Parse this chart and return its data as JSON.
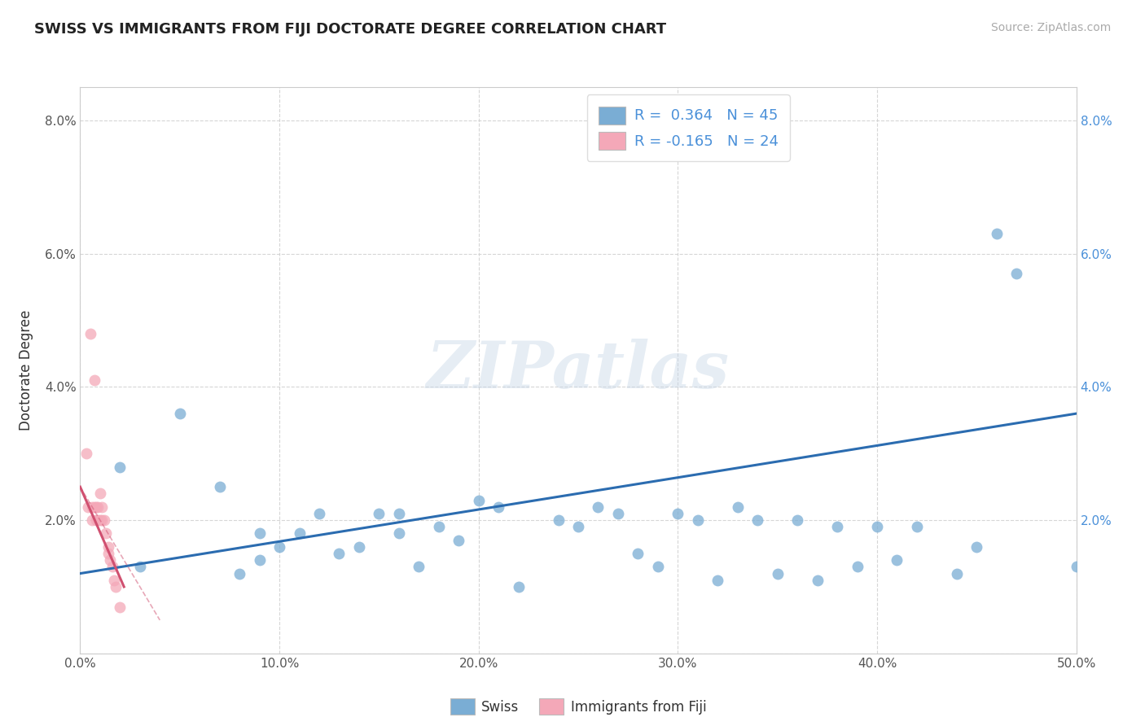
{
  "title": "SWISS VS IMMIGRANTS FROM FIJI DOCTORATE DEGREE CORRELATION CHART",
  "source": "Source: ZipAtlas.com",
  "ylabel": "Doctorate Degree",
  "xlim": [
    0.0,
    0.5
  ],
  "ylim": [
    0.0,
    0.085
  ],
  "xticks": [
    0.0,
    0.1,
    0.2,
    0.3,
    0.4,
    0.5
  ],
  "yticks": [
    0.0,
    0.02,
    0.04,
    0.06,
    0.08
  ],
  "ytick_labels_left": [
    "",
    "2.0%",
    "4.0%",
    "6.0%",
    "8.0%"
  ],
  "ytick_labels_right": [
    "",
    "2.0%",
    "4.0%",
    "6.0%",
    "8.0%"
  ],
  "xtick_labels": [
    "0.0%",
    "10.0%",
    "20.0%",
    "30.0%",
    "40.0%",
    "50.0%"
  ],
  "swiss_color": "#7aadd4",
  "fiji_color": "#f4a8b8",
  "swiss_line_color": "#2b6cb0",
  "fiji_line_color": "#d05070",
  "swiss_R": 0.364,
  "swiss_N": 45,
  "fiji_R": -0.165,
  "fiji_N": 24,
  "watermark": "ZIPatlas",
  "swiss_x": [
    0.02,
    0.03,
    0.05,
    0.07,
    0.08,
    0.09,
    0.09,
    0.1,
    0.11,
    0.12,
    0.13,
    0.14,
    0.15,
    0.16,
    0.16,
    0.17,
    0.18,
    0.19,
    0.2,
    0.21,
    0.22,
    0.24,
    0.25,
    0.26,
    0.27,
    0.28,
    0.29,
    0.3,
    0.31,
    0.32,
    0.33,
    0.34,
    0.35,
    0.36,
    0.37,
    0.38,
    0.39,
    0.4,
    0.41,
    0.42,
    0.44,
    0.45,
    0.46,
    0.47,
    0.5
  ],
  "swiss_y": [
    0.028,
    0.013,
    0.036,
    0.025,
    0.012,
    0.018,
    0.014,
    0.016,
    0.018,
    0.021,
    0.015,
    0.016,
    0.021,
    0.021,
    0.018,
    0.013,
    0.019,
    0.017,
    0.023,
    0.022,
    0.01,
    0.02,
    0.019,
    0.022,
    0.021,
    0.015,
    0.013,
    0.021,
    0.02,
    0.011,
    0.022,
    0.02,
    0.012,
    0.02,
    0.011,
    0.019,
    0.013,
    0.019,
    0.014,
    0.019,
    0.012,
    0.016,
    0.063,
    0.057,
    0.013
  ],
  "fiji_x": [
    0.003,
    0.004,
    0.005,
    0.006,
    0.006,
    0.007,
    0.007,
    0.008,
    0.008,
    0.009,
    0.009,
    0.01,
    0.01,
    0.011,
    0.011,
    0.012,
    0.013,
    0.014,
    0.014,
    0.015,
    0.016,
    0.017,
    0.018,
    0.02
  ],
  "fiji_y": [
    0.03,
    0.022,
    0.048,
    0.022,
    0.02,
    0.041,
    0.022,
    0.022,
    0.02,
    0.022,
    0.02,
    0.024,
    0.02,
    0.022,
    0.02,
    0.02,
    0.018,
    0.016,
    0.015,
    0.014,
    0.013,
    0.011,
    0.01,
    0.007
  ],
  "swiss_trendline_x": [
    0.0,
    0.5
  ],
  "swiss_trendline_y": [
    0.012,
    0.036
  ],
  "fiji_trendline_x": [
    0.0,
    0.022
  ],
  "fiji_trendline_y": [
    0.025,
    0.01
  ]
}
